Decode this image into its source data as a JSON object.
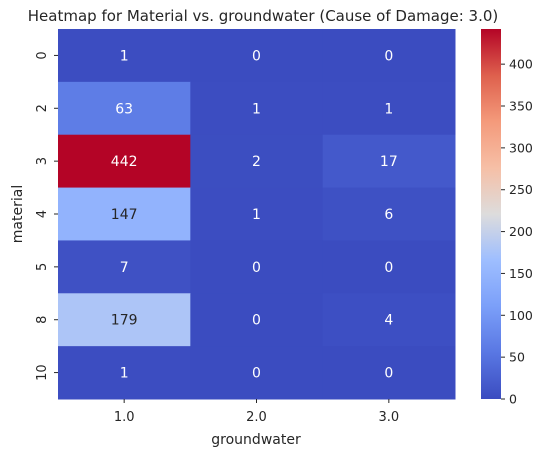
{
  "chart_data": {
    "type": "heatmap",
    "title": "Heatmap for Material vs. groundwater (Cause of Damage: 3.0)",
    "xlabel": "groundwater",
    "ylabel": "material",
    "x_categories": [
      "1.0",
      "2.0",
      "3.0"
    ],
    "y_categories": [
      "0",
      "2",
      "3",
      "4",
      "5",
      "8",
      "10"
    ],
    "values": [
      [
        1,
        0,
        0
      ],
      [
        63,
        1,
        1
      ],
      [
        442,
        2,
        17
      ],
      [
        147,
        1,
        6
      ],
      [
        7,
        0,
        0
      ],
      [
        179,
        0,
        4
      ],
      [
        1,
        0,
        0
      ]
    ],
    "colormap": "coolwarm",
    "vmin": 0,
    "vmax": 442,
    "colorbar_ticks": [
      0,
      50,
      100,
      150,
      200,
      250,
      300,
      350,
      400
    ]
  }
}
